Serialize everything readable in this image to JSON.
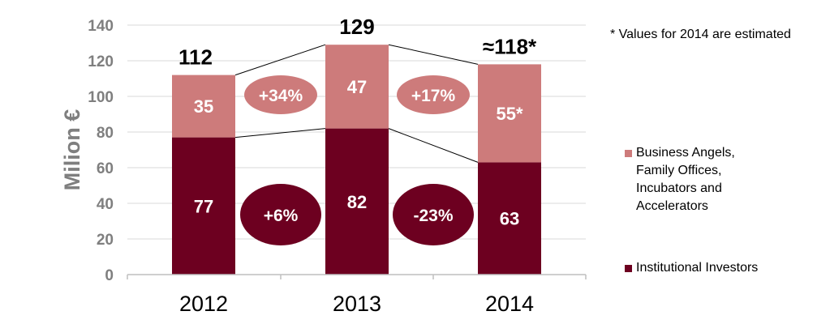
{
  "chart_data": {
    "type": "bar",
    "stacked": true,
    "categories": [
      "2012",
      "2013",
      "2014"
    ],
    "ylabel": "Milion €",
    "ylim": [
      0,
      140
    ],
    "yticks": [
      0,
      20,
      40,
      60,
      80,
      100,
      120,
      140
    ],
    "grid": true,
    "series": [
      {
        "name": "Institutional Investors",
        "values": [
          77,
          82,
          63
        ],
        "labels": [
          "77",
          "82",
          "63"
        ],
        "color": "#6d0020"
      },
      {
        "name_lines": [
          "Business Angels,",
          "Family Offices,",
          "Incubators and",
          "Accelerators"
        ],
        "values": [
          35,
          47,
          55
        ],
        "labels": [
          "35",
          "47",
          "55*"
        ],
        "color": "#cd7b7b"
      }
    ],
    "totals": [
      "112",
      "129",
      "≈118*"
    ],
    "growth_upper": [
      "+34%",
      "+17%"
    ],
    "growth_lower": [
      "+6%",
      "-23%"
    ],
    "note": "* Values for 2014 are estimated",
    "legend_position": "right"
  }
}
